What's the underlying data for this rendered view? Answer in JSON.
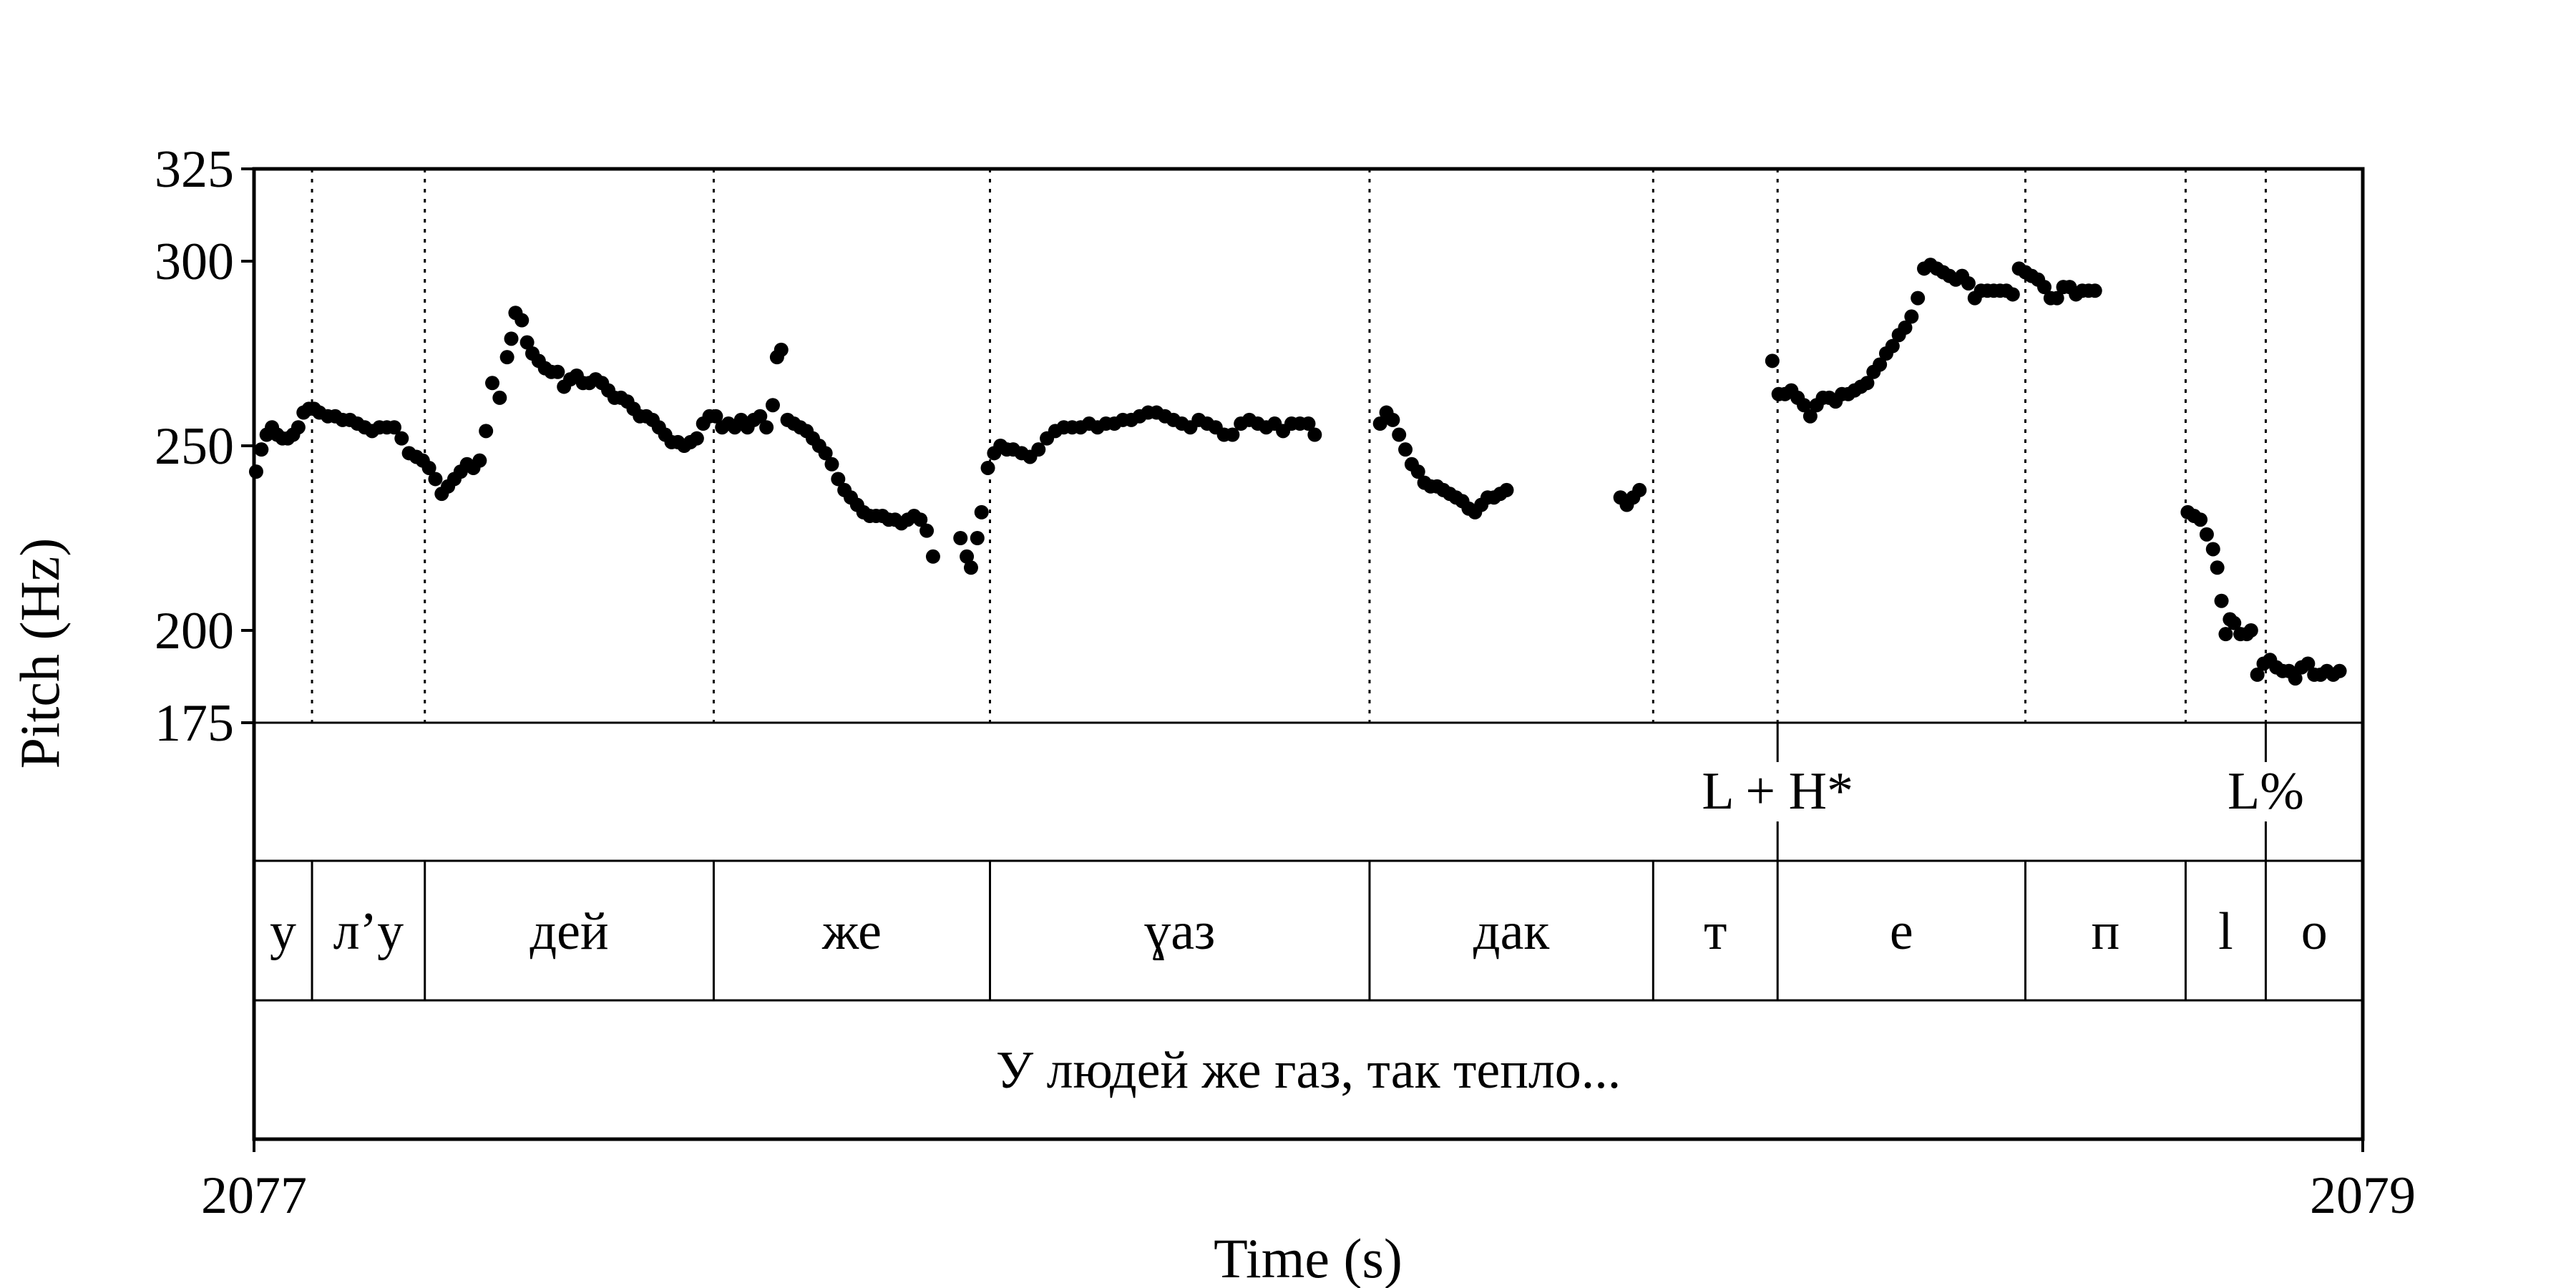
{
  "chart_data": {
    "type": "scatter",
    "title": "",
    "xlabel": "Time (s)",
    "ylabel": "Pitch (Hz)",
    "xlim": [
      2077,
      2079
    ],
    "ylim": [
      175,
      325
    ],
    "x_ticks": [
      "2077",
      "2079"
    ],
    "y_ticks": [
      "175",
      "200",
      "250",
      "300",
      "325"
    ],
    "y_tick_values": [
      175,
      200,
      250,
      300,
      325
    ],
    "grid": false,
    "segment_boundaries": [
      2077.055,
      2077.162,
      2077.436,
      2077.698,
      2078.058,
      2078.327,
      2078.445,
      2078.68,
      2078.832,
      2078.908
    ],
    "tiers": {
      "tones": [
        {
          "label": "L + H*",
          "time": 2078.445
        },
        {
          "label": "L%",
          "time": 2078.908
        }
      ],
      "segments": [
        {
          "label": "у",
          "start": 2077.0,
          "end": 2077.055
        },
        {
          "label": "л’у",
          "start": 2077.055,
          "end": 2077.162
        },
        {
          "label": "дей",
          "start": 2077.162,
          "end": 2077.436
        },
        {
          "label": "же",
          "start": 2077.436,
          "end": 2077.698
        },
        {
          "label": "ɣаз",
          "start": 2077.698,
          "end": 2078.058
        },
        {
          "label": "дак",
          "start": 2078.058,
          "end": 2078.327
        },
        {
          "label": "т",
          "start": 2078.327,
          "end": 2078.445
        },
        {
          "label": "е",
          "start": 2078.445,
          "end": 2078.68
        },
        {
          "label": "п",
          "start": 2078.68,
          "end": 2078.832
        },
        {
          "label": "l",
          "start": 2078.832,
          "end": 2078.908
        },
        {
          "label": "о",
          "start": 2078.908,
          "end": 2079.0
        }
      ],
      "sentence": "У людей же газ, так тепло..."
    },
    "series": [
      {
        "points": [
          [
            2077.002,
            243
          ],
          [
            2077.007,
            249
          ],
          [
            2077.012,
            253
          ],
          [
            2077.017,
            255
          ],
          [
            2077.022,
            253
          ],
          [
            2077.027,
            252
          ],
          [
            2077.032,
            252
          ],
          [
            2077.037,
            253
          ],
          [
            2077.042,
            255
          ],
          [
            2077.047,
            259
          ],
          [
            2077.052,
            260
          ],
          [
            2077.057,
            260
          ],
          [
            2077.062,
            259
          ],
          [
            2077.07,
            258
          ],
          [
            2077.077,
            258
          ],
          [
            2077.084,
            257
          ],
          [
            2077.091,
            257
          ],
          [
            2077.098,
            256
          ],
          [
            2077.105,
            255
          ],
          [
            2077.112,
            254
          ],
          [
            2077.119,
            255
          ],
          [
            2077.126,
            255
          ],
          [
            2077.133,
            255
          ],
          [
            2077.14,
            252
          ],
          [
            2077.147,
            248
          ],
          [
            2077.154,
            247
          ],
          [
            2077.16,
            246
          ],
          [
            2077.166,
            244
          ],
          [
            2077.172,
            241
          ],
          [
            2077.178,
            237
          ],
          [
            2077.184,
            239
          ],
          [
            2077.19,
            241
          ],
          [
            2077.196,
            243
          ],
          [
            2077.202,
            245
          ],
          [
            2077.208,
            244
          ],
          [
            2077.214,
            246
          ],
          [
            2077.22,
            254
          ],
          [
            2077.226,
            267
          ],
          [
            2077.233,
            263
          ],
          [
            2077.24,
            274
          ],
          [
            2077.244,
            279
          ],
          [
            2077.248,
            286
          ],
          [
            2077.254,
            284
          ],
          [
            2077.259,
            278
          ],
          [
            2077.264,
            275
          ],
          [
            2077.27,
            273
          ],
          [
            2077.276,
            271
          ],
          [
            2077.282,
            270
          ],
          [
            2077.288,
            270
          ],
          [
            2077.294,
            266
          ],
          [
            2077.3,
            268
          ],
          [
            2077.306,
            269
          ],
          [
            2077.312,
            267
          ],
          [
            2077.318,
            267
          ],
          [
            2077.324,
            268
          ],
          [
            2077.33,
            267
          ],
          [
            2077.336,
            265
          ],
          [
            2077.342,
            263
          ],
          [
            2077.348,
            263
          ],
          [
            2077.354,
            262
          ],
          [
            2077.36,
            260
          ],
          [
            2077.366,
            258
          ],
          [
            2077.372,
            258
          ],
          [
            2077.378,
            257
          ],
          [
            2077.384,
            255
          ],
          [
            2077.39,
            253
          ],
          [
            2077.396,
            251
          ],
          [
            2077.402,
            251
          ],
          [
            2077.408,
            250
          ],
          [
            2077.414,
            251
          ],
          [
            2077.42,
            252
          ],
          [
            2077.426,
            256
          ],
          [
            2077.432,
            258
          ],
          [
            2077.438,
            258
          ],
          [
            2077.444,
            255
          ],
          [
            2077.45,
            256
          ],
          [
            2077.456,
            255
          ],
          [
            2077.462,
            257
          ],
          [
            2077.468,
            255
          ],
          [
            2077.474,
            257
          ],
          [
            2077.48,
            258
          ],
          [
            2077.486,
            255
          ],
          [
            2077.492,
            261
          ],
          [
            2077.496,
            274
          ],
          [
            2077.5,
            276
          ],
          [
            2077.506,
            257
          ],
          [
            2077.512,
            256
          ],
          [
            2077.518,
            255
          ],
          [
            2077.524,
            254
          ],
          [
            2077.53,
            252
          ],
          [
            2077.536,
            250
          ],
          [
            2077.542,
            248
          ],
          [
            2077.548,
            245
          ],
          [
            2077.554,
            241
          ],
          [
            2077.56,
            238
          ],
          [
            2077.566,
            236
          ],
          [
            2077.572,
            234
          ],
          [
            2077.578,
            232
          ],
          [
            2077.584,
            231
          ],
          [
            2077.59,
            231
          ],
          [
            2077.596,
            231
          ],
          [
            2077.602,
            230
          ],
          [
            2077.608,
            230
          ],
          [
            2077.614,
            229
          ],
          [
            2077.62,
            230
          ],
          [
            2077.626,
            231
          ],
          [
            2077.632,
            230
          ],
          [
            2077.638,
            227
          ],
          [
            2077.644,
            220
          ],
          [
            2077.67,
            225
          ],
          [
            2077.676,
            220
          ],
          [
            2077.68,
            217
          ],
          [
            2077.686,
            225
          ],
          [
            2077.69,
            232
          ],
          [
            2077.696,
            244
          ],
          [
            2077.702,
            248
          ],
          [
            2077.708,
            250
          ],
          [
            2077.714,
            249
          ],
          [
            2077.72,
            249
          ],
          [
            2077.728,
            248
          ],
          [
            2077.736,
            247
          ],
          [
            2077.744,
            249
          ],
          [
            2077.752,
            252
          ],
          [
            2077.76,
            254
          ],
          [
            2077.768,
            255
          ],
          [
            2077.776,
            255
          ],
          [
            2077.784,
            255
          ],
          [
            2077.792,
            256
          ],
          [
            2077.8,
            255
          ],
          [
            2077.808,
            256
          ],
          [
            2077.816,
            256
          ],
          [
            2077.824,
            257
          ],
          [
            2077.832,
            257
          ],
          [
            2077.84,
            258
          ],
          [
            2077.848,
            259
          ],
          [
            2077.856,
            259
          ],
          [
            2077.864,
            258
          ],
          [
            2077.872,
            257
          ],
          [
            2077.88,
            256
          ],
          [
            2077.888,
            255
          ],
          [
            2077.896,
            257
          ],
          [
            2077.904,
            256
          ],
          [
            2077.912,
            255
          ],
          [
            2077.92,
            253
          ],
          [
            2077.928,
            253
          ],
          [
            2077.936,
            256
          ],
          [
            2077.944,
            257
          ],
          [
            2077.952,
            256
          ],
          [
            2077.96,
            255
          ],
          [
            2077.968,
            256
          ],
          [
            2077.976,
            254
          ],
          [
            2077.984,
            256
          ],
          [
            2077.992,
            256
          ],
          [
            2078.0,
            256
          ],
          [
            2078.006,
            253
          ],
          [
            2078.068,
            256
          ],
          [
            2078.074,
            259
          ],
          [
            2078.08,
            257
          ],
          [
            2078.086,
            253
          ],
          [
            2078.092,
            249
          ],
          [
            2078.098,
            245
          ],
          [
            2078.104,
            243
          ],
          [
            2078.11,
            240
          ],
          [
            2078.116,
            239
          ],
          [
            2078.122,
            239
          ],
          [
            2078.128,
            238
          ],
          [
            2078.134,
            237
          ],
          [
            2078.14,
            236
          ],
          [
            2078.146,
            235
          ],
          [
            2078.152,
            233
          ],
          [
            2078.158,
            232
          ],
          [
            2078.164,
            234
          ],
          [
            2078.17,
            236
          ],
          [
            2078.176,
            236
          ],
          [
            2078.182,
            237
          ],
          [
            2078.188,
            238
          ],
          [
            2078.296,
            236
          ],
          [
            2078.302,
            234
          ],
          [
            2078.308,
            236
          ],
          [
            2078.314,
            238
          ],
          [
            2078.44,
            273
          ],
          [
            2078.446,
            264
          ],
          [
            2078.452,
            264
          ],
          [
            2078.458,
            265
          ],
          [
            2078.464,
            263
          ],
          [
            2078.47,
            261
          ],
          [
            2078.476,
            258
          ],
          [
            2078.482,
            261
          ],
          [
            2078.488,
            263
          ],
          [
            2078.494,
            263
          ],
          [
            2078.5,
            262
          ],
          [
            2078.506,
            264
          ],
          [
            2078.512,
            264
          ],
          [
            2078.518,
            265
          ],
          [
            2078.524,
            266
          ],
          [
            2078.53,
            267
          ],
          [
            2078.536,
            270
          ],
          [
            2078.542,
            272
          ],
          [
            2078.548,
            275
          ],
          [
            2078.554,
            277
          ],
          [
            2078.56,
            280
          ],
          [
            2078.566,
            282
          ],
          [
            2078.572,
            285
          ],
          [
            2078.578,
            290
          ],
          [
            2078.584,
            298
          ],
          [
            2078.59,
            299
          ],
          [
            2078.596,
            298
          ],
          [
            2078.602,
            297
          ],
          [
            2078.608,
            296
          ],
          [
            2078.614,
            295
          ],
          [
            2078.62,
            296
          ],
          [
            2078.626,
            294
          ],
          [
            2078.632,
            290
          ],
          [
            2078.638,
            292
          ],
          [
            2078.644,
            292
          ],
          [
            2078.65,
            292
          ],
          [
            2078.656,
            292
          ],
          [
            2078.662,
            292
          ],
          [
            2078.668,
            291
          ],
          [
            2078.674,
            298
          ],
          [
            2078.68,
            297
          ],
          [
            2078.686,
            296
          ],
          [
            2078.692,
            295
          ],
          [
            2078.698,
            293
          ],
          [
            2078.704,
            290
          ],
          [
            2078.71,
            290
          ],
          [
            2078.716,
            293
          ],
          [
            2078.722,
            293
          ],
          [
            2078.728,
            291
          ],
          [
            2078.734,
            292
          ],
          [
            2078.74,
            292
          ],
          [
            2078.746,
            292
          ],
          [
            2078.834,
            232
          ],
          [
            2078.84,
            231
          ],
          [
            2078.846,
            230
          ],
          [
            2078.852,
            226
          ],
          [
            2078.858,
            222
          ],
          [
            2078.862,
            217
          ],
          [
            2078.866,
            208
          ],
          [
            2078.87,
            199
          ],
          [
            2078.874,
            203
          ],
          [
            2078.878,
            202
          ],
          [
            2078.884,
            199
          ],
          [
            2078.89,
            199
          ],
          [
            2078.894,
            200
          ],
          [
            2078.9,
            188
          ],
          [
            2078.906,
            191
          ],
          [
            2078.912,
            192
          ],
          [
            2078.918,
            190
          ],
          [
            2078.924,
            189
          ],
          [
            2078.93,
            189
          ],
          [
            2078.936,
            187
          ],
          [
            2078.942,
            190
          ],
          [
            2078.948,
            191
          ],
          [
            2078.954,
            188
          ],
          [
            2078.96,
            188
          ],
          [
            2078.966,
            189
          ],
          [
            2078.972,
            188
          ],
          [
            2078.978,
            189
          ]
        ]
      }
    ]
  }
}
